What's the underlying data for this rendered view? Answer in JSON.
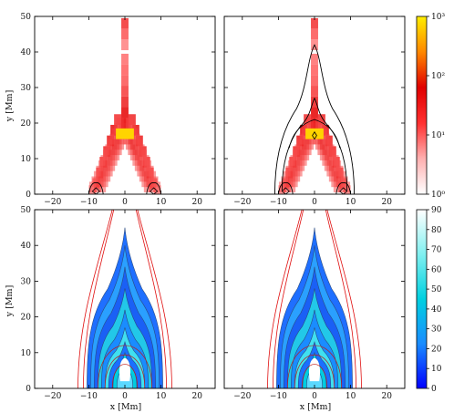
{
  "chart_data": [
    {
      "type": "heatmap",
      "panel": "top-left",
      "x_ticks": [
        "−20",
        "−10",
        "0",
        "10",
        "20"
      ],
      "y_ticks": [
        "0",
        "10",
        "20",
        "30",
        "40",
        "50"
      ],
      "xlim": [
        -25,
        25
      ],
      "ylim": [
        0,
        50
      ],
      "ylabel": "y [Mm]",
      "color_scale": "log",
      "cells": [
        {
          "x": 0,
          "y": 48,
          "v": 25
        },
        {
          "x": 0,
          "y": 45,
          "v": 12
        },
        {
          "x": 0,
          "y": 42,
          "v": 6
        },
        {
          "x": 0,
          "y": 38,
          "v": 8
        },
        {
          "x": 0,
          "y": 35,
          "v": 10
        },
        {
          "x": 0,
          "y": 32,
          "v": 12
        },
        {
          "x": 0,
          "y": 29,
          "v": 20
        },
        {
          "x": 0,
          "y": 26,
          "v": 35
        },
        {
          "x": 0,
          "y": 23,
          "v": 60
        },
        {
          "x": -2,
          "y": 21,
          "v": 25
        },
        {
          "x": 2,
          "y": 21,
          "v": 30
        },
        {
          "x": 0,
          "y": 20,
          "v": 90
        },
        {
          "x": -1,
          "y": 17,
          "v": 150
        },
        {
          "x": 1,
          "y": 17,
          "v": 200
        },
        {
          "x": -3,
          "y": 18,
          "v": 50
        },
        {
          "x": 3,
          "y": 18,
          "v": 45
        },
        {
          "x": -4,
          "y": 15,
          "v": 40
        },
        {
          "x": 4,
          "y": 15,
          "v": 35
        },
        {
          "x": -5,
          "y": 12,
          "v": 30
        },
        {
          "x": 5,
          "y": 12,
          "v": 30
        },
        {
          "x": -6,
          "y": 9,
          "v": 25
        },
        {
          "x": 6,
          "y": 9,
          "v": 28
        },
        {
          "x": -7,
          "y": 6,
          "v": 20
        },
        {
          "x": 7,
          "y": 6,
          "v": 22
        },
        {
          "x": -8,
          "y": 3,
          "v": 10
        },
        {
          "x": 8,
          "y": 3,
          "v": 12
        },
        {
          "x": -9,
          "y": 1,
          "v": 5
        },
        {
          "x": 9,
          "y": 1,
          "v": 5
        }
      ]
    },
    {
      "type": "heatmap",
      "panel": "top-right",
      "x_ticks": [
        "−20",
        "−10",
        "0",
        "10",
        "20"
      ],
      "xlim": [
        -25,
        25
      ],
      "ylim": [
        0,
        50
      ],
      "color_scale": "log",
      "has_contours": true,
      "cells": [
        {
          "x": 0,
          "y": 48,
          "v": 25
        },
        {
          "x": 0,
          "y": 45,
          "v": 12
        },
        {
          "x": 0,
          "y": 42,
          "v": 6
        },
        {
          "x": 0,
          "y": 38,
          "v": 8
        },
        {
          "x": 0,
          "y": 35,
          "v": 10
        },
        {
          "x": 0,
          "y": 32,
          "v": 12
        },
        {
          "x": 0,
          "y": 29,
          "v": 20
        },
        {
          "x": 0,
          "y": 26,
          "v": 35
        },
        {
          "x": 0,
          "y": 23,
          "v": 60
        },
        {
          "x": -2,
          "y": 21,
          "v": 25
        },
        {
          "x": 2,
          "y": 21,
          "v": 30
        },
        {
          "x": 0,
          "y": 20,
          "v": 90
        },
        {
          "x": -1,
          "y": 17,
          "v": 150
        },
        {
          "x": 1,
          "y": 17,
          "v": 200
        },
        {
          "x": -3,
          "y": 18,
          "v": 50
        },
        {
          "x": 3,
          "y": 18,
          "v": 45
        },
        {
          "x": -4,
          "y": 15,
          "v": 40
        },
        {
          "x": 4,
          "y": 15,
          "v": 35
        },
        {
          "x": -5,
          "y": 12,
          "v": 30
        },
        {
          "x": 5,
          "y": 12,
          "v": 30
        },
        {
          "x": -6,
          "y": 9,
          "v": 25
        },
        {
          "x": 6,
          "y": 9,
          "v": 28
        },
        {
          "x": -7,
          "y": 6,
          "v": 20
        },
        {
          "x": 7,
          "y": 6,
          "v": 22
        },
        {
          "x": -8,
          "y": 3,
          "v": 10
        },
        {
          "x": 8,
          "y": 3,
          "v": 12
        },
        {
          "x": -9,
          "y": 1,
          "v": 5
        },
        {
          "x": 9,
          "y": 1,
          "v": 5
        }
      ]
    },
    {
      "type": "heatmap",
      "panel": "bottom-left",
      "x_ticks": [
        "−20",
        "−10",
        "0",
        "10",
        "20"
      ],
      "y_ticks": [
        "0",
        "10",
        "20",
        "30",
        "40",
        "50"
      ],
      "xlim": [
        -25,
        25
      ],
      "ylim": [
        0,
        50
      ],
      "xlabel": "x [Mm]",
      "ylabel": "y [Mm]",
      "color_scale": "linear",
      "style": "filled teardrop contours"
    },
    {
      "type": "heatmap",
      "panel": "bottom-right",
      "x_ticks": [
        "−20",
        "−10",
        "0",
        "10",
        "20"
      ],
      "xlim": [
        -25,
        25
      ],
      "ylim": [
        0,
        50
      ],
      "xlabel": "x [Mm]",
      "color_scale": "linear",
      "style": "filled teardrop contours"
    }
  ],
  "colorbar_top": {
    "scale": "log",
    "ticks": [
      "10³",
      "10²",
      "10¹",
      "10⁰"
    ],
    "colors": [
      "#ffffff",
      "#ffb0b0",
      "#ff3030",
      "#e00000",
      "#ff8800",
      "#ffee00"
    ]
  },
  "colorbar_bottom": {
    "scale": "linear",
    "ticks": [
      "90",
      "80",
      "70",
      "60",
      "50",
      "40",
      "30",
      "20",
      "10",
      "0"
    ],
    "colors": [
      "#0000ff",
      "#1a8cff",
      "#00d0e0",
      "#80f0f0",
      "#ffffff"
    ]
  }
}
